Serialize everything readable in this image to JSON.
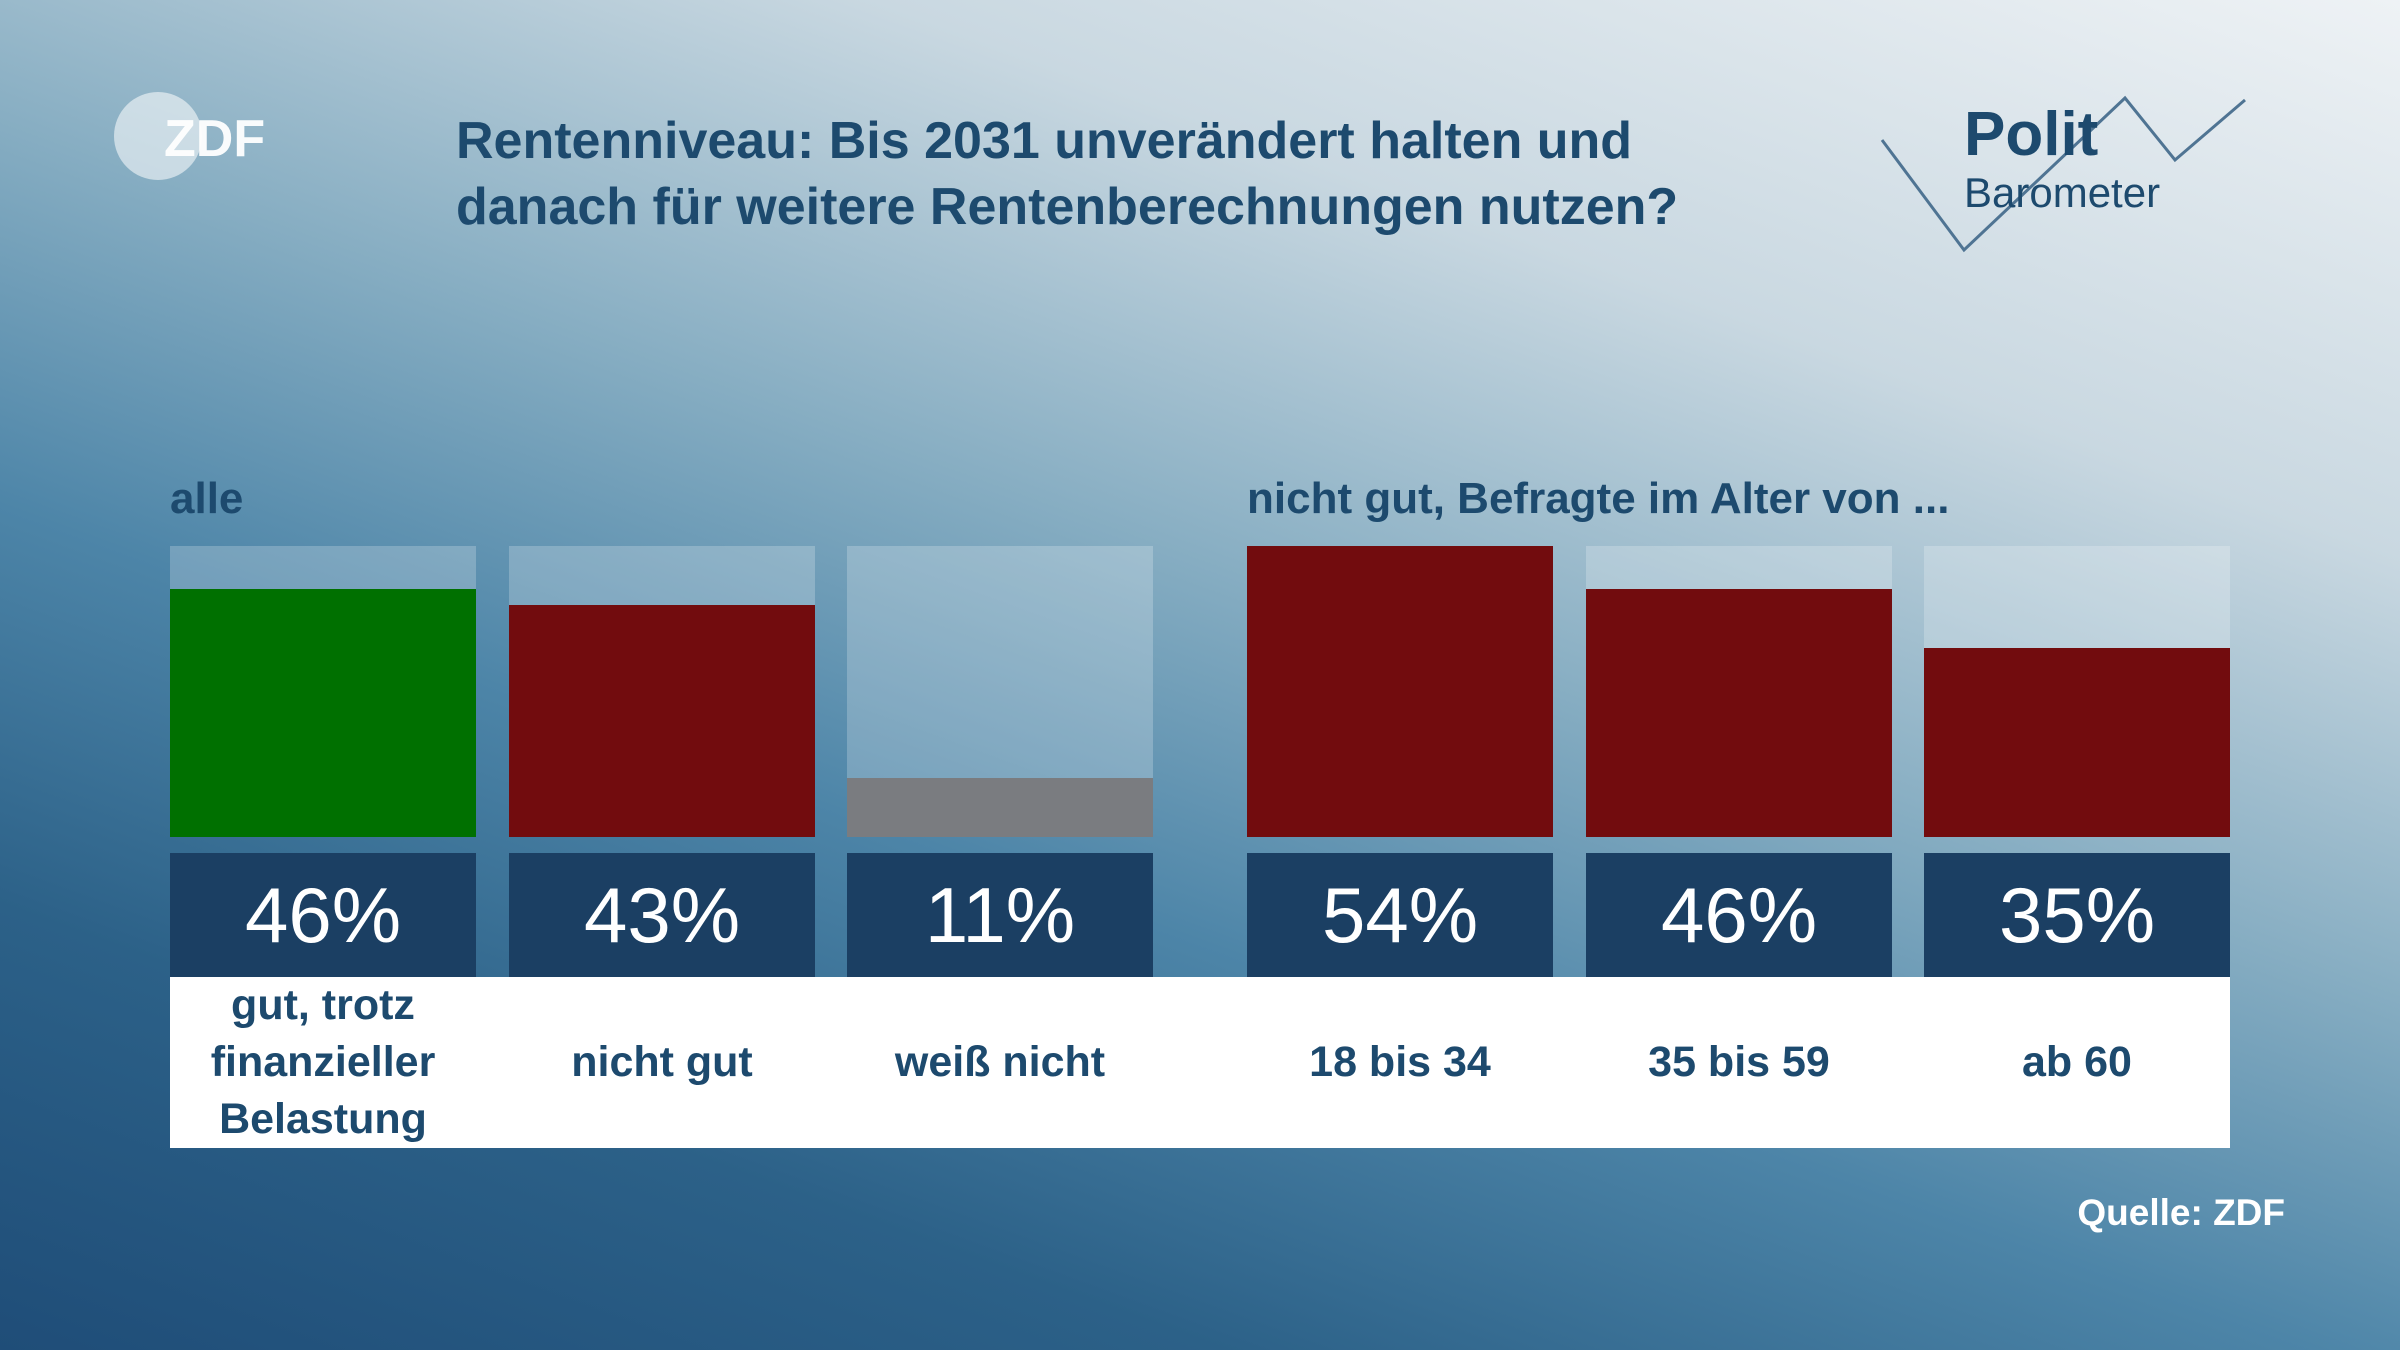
{
  "header": {
    "title_line1": "Rentenniveau: Bis 2031 unverändert halten und",
    "title_line2": "danach für weitere Rentenberechnungen nutzen?",
    "logo": "ZDF",
    "brand": "Polit Barometer"
  },
  "chart_data": {
    "type": "bar",
    "groups": [
      {
        "label": "alle",
        "categories": [
          "gut, trotz finanzieller Belastung",
          "nicht gut",
          "weiß nicht"
        ],
        "values": [
          46,
          43,
          11
        ],
        "colors": [
          "#007000",
          "#720c0e",
          "#7a7c80"
        ],
        "value_labels": [
          "46%",
          "43%",
          "11%"
        ]
      },
      {
        "label": "nicht gut, Befragte im Alter von ...",
        "categories": [
          "18 bis 34",
          "35 bis 59",
          "ab 60"
        ],
        "values": [
          54,
          46,
          35
        ],
        "colors": [
          "#720c0e",
          "#720c0e",
          "#720c0e"
        ],
        "value_labels": [
          "54%",
          "46%",
          "35%"
        ]
      }
    ],
    "ylim": [
      0,
      54
    ],
    "unit": "%"
  },
  "footer": {
    "source": "Quelle: ZDF"
  }
}
